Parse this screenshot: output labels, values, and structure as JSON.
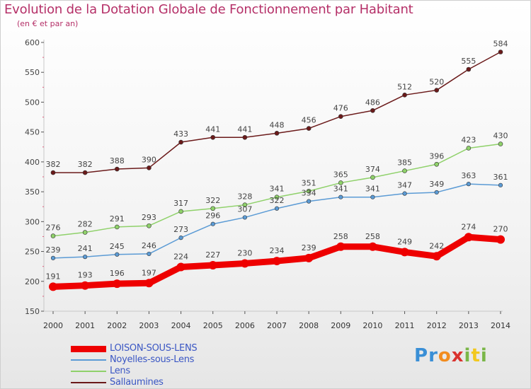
{
  "title": "Evolution de la Dotation Globale de Fonctionnement par Habitant",
  "subtitle": "(en € et par an)",
  "logo": {
    "text": "Proxiti",
    "colors": [
      "#3a8fd6",
      "#3a8fd6",
      "#f28c1e",
      "#d9322e",
      "#7ab648",
      "#f2c81e",
      "#7ab648"
    ]
  },
  "chart_data": {
    "type": "line",
    "title": "Evolution de la Dotation Globale de Fonctionnement par Habitant",
    "subtitle": "(en € et par an)",
    "xlabel": "",
    "ylabel": "",
    "ylim": [
      150,
      600
    ],
    "yticks": [
      150,
      200,
      250,
      300,
      350,
      400,
      450,
      500,
      550,
      600
    ],
    "grid": false,
    "legend_position": "bottom-left",
    "categories": [
      "2000",
      "2001",
      "2002",
      "2003",
      "2004",
      "2005",
      "2006",
      "2007",
      "2008",
      "2009",
      "2010",
      "2011",
      "2012",
      "2013",
      "2014"
    ],
    "series": [
      {
        "name": "Sallaumines",
        "color": "#6b1a1a",
        "values": [
          382,
          382,
          388,
          390,
          433,
          441,
          441,
          448,
          456,
          476,
          486,
          512,
          520,
          555,
          584
        ]
      },
      {
        "name": "Lens",
        "color": "#8fd16a",
        "values": [
          276,
          282,
          291,
          293,
          317,
          322,
          328,
          341,
          351,
          365,
          374,
          385,
          396,
          423,
          430
        ]
      },
      {
        "name": "Noyelles-sous-Lens",
        "color": "#5b9bd5",
        "values": [
          239,
          241,
          245,
          246,
          273,
          296,
          307,
          322,
          334,
          341,
          341,
          347,
          349,
          363,
          361
        ]
      },
      {
        "name": "LOISON-SOUS-LENS",
        "color": "#ee0000",
        "values": [
          191,
          193,
          196,
          197,
          224,
          227,
          230,
          234,
          239,
          258,
          258,
          249,
          242,
          274,
          270
        ]
      }
    ],
    "legend_order": [
      "LOISON-SOUS-LENS",
      "Noyelles-sous-Lens",
      "Lens",
      "Sallaumines"
    ]
  }
}
